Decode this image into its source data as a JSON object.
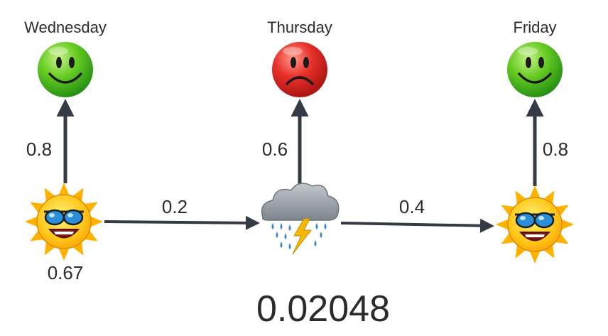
{
  "days": [
    {
      "name": "Wednesday",
      "mood": "happy",
      "emission_prob": "0.8",
      "weather": "sunny"
    },
    {
      "name": "Thursday",
      "mood": "sad",
      "emission_prob": "0.6",
      "weather": "stormy"
    },
    {
      "name": "Friday",
      "mood": "happy",
      "emission_prob": "0.8",
      "weather": "sunny"
    }
  ],
  "initial_prob": "0.67",
  "transitions": [
    "0.2",
    "0.4"
  ],
  "result": "0.02048",
  "colors": {
    "arrow": "#343a46",
    "happy_face": "#43b51a",
    "sad_face": "#d9231f",
    "sun": "#ffbe00",
    "sunglasses": "#2a8fd8",
    "cloud": "#9aa0a7",
    "lightning": "#f5b800",
    "rain": "#3a86d6"
  },
  "icons": [
    "happy-face-icon",
    "sad-face-icon",
    "sun-sunglasses-icon",
    "storm-cloud-icon"
  ]
}
